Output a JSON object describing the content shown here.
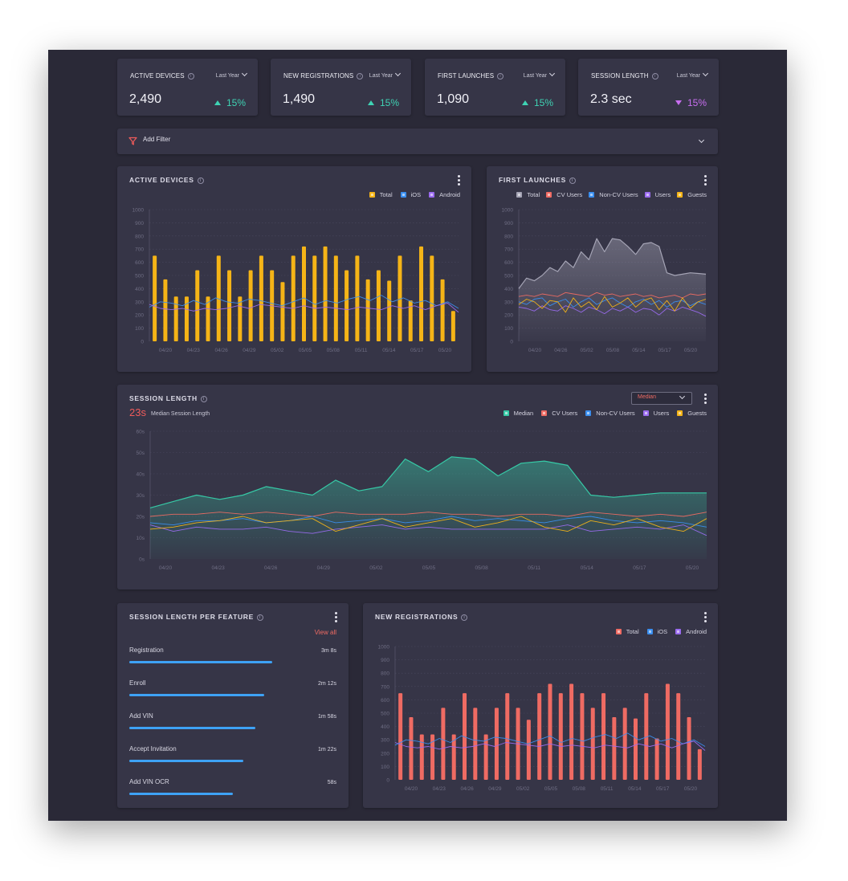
{
  "kpis": [
    {
      "title": "ACTIVE DEVICES",
      "period": "Last Year",
      "value": "2,490",
      "delta": "15%",
      "trend": "up"
    },
    {
      "title": "NEW  REGISTRATIONS",
      "period": "Last Year",
      "value": "1,490",
      "delta": "15%",
      "trend": "up"
    },
    {
      "title": "FIRST LAUNCHES",
      "period": "Last Year",
      "value": "1,090",
      "delta": "15%",
      "trend": "up"
    },
    {
      "title": "SESSION LENGTH",
      "period": "Last Year",
      "value": "2.3 sec",
      "delta": "15%",
      "trend": "down"
    }
  ],
  "filter": {
    "label": "Add Filter"
  },
  "colors": {
    "accent_yellow": "#f5b417",
    "accent_red": "#ef6b63",
    "ios_blue": "#3b8ff0",
    "android_purple": "#9b6cf0",
    "teal": "#36c9a6",
    "grey": "#a5a4b5",
    "kpi_up": "#3fd3b4",
    "kpi_down": "#c86ef0"
  },
  "active_devices": {
    "title": "ACTIVE DEVICES",
    "legend": [
      {
        "label": "Total",
        "color": "#f5b417"
      },
      {
        "label": "iOS",
        "color": "#3b8ff0"
      },
      {
        "label": "Android",
        "color": "#9b6cf0"
      }
    ]
  },
  "first_launches": {
    "title": "FIRST LAUNCHES",
    "legend": [
      {
        "label": "Total",
        "color": "#a5a4b5"
      },
      {
        "label": "CV Users",
        "color": "#ef6b63"
      },
      {
        "label": "Non-CV Users",
        "color": "#3b8ff0"
      },
      {
        "label": "Users",
        "color": "#9b6cf0"
      },
      {
        "label": "Guests",
        "color": "#f5b417"
      }
    ]
  },
  "session_length": {
    "title": "SESSION LENGTH",
    "big_value": "23s",
    "subtitle": "Median Session Length",
    "dropdown": "Median",
    "legend": [
      {
        "label": "Median",
        "color": "#36c9a6"
      },
      {
        "label": "CV Users",
        "color": "#ef6b63"
      },
      {
        "label": "Non-CV Users",
        "color": "#3b8ff0"
      },
      {
        "label": "Users",
        "color": "#9b6cf0"
      },
      {
        "label": "Guests",
        "color": "#f5b417"
      }
    ]
  },
  "features": {
    "title": "SESSION LENGTH PER FEATURE",
    "view_all": "View all",
    "items": [
      {
        "name": "Registration",
        "value": "3m 8s",
        "fraction": 0.69
      },
      {
        "name": "Enroll",
        "value": "2m 12s",
        "fraction": 0.65
      },
      {
        "name": "Add VIN",
        "value": "1m 58s",
        "fraction": 0.61
      },
      {
        "name": "Accept Invitation",
        "value": "1m 22s",
        "fraction": 0.55
      },
      {
        "name": "Add VIN OCR",
        "value": "58s",
        "fraction": 0.5
      }
    ]
  },
  "new_registrations": {
    "title": "NEW REGISTRATIONS",
    "legend": [
      {
        "label": "Total",
        "color": "#ef6b63"
      },
      {
        "label": "iOS",
        "color": "#3b8ff0"
      },
      {
        "label": "Android",
        "color": "#9b6cf0"
      }
    ]
  },
  "chart_data": [
    {
      "id": "active_devices",
      "type": "bar",
      "title": "ACTIVE DEVICES",
      "xticks": [
        "04/20",
        "04/23",
        "04/26",
        "04/29",
        "05/02",
        "05/05",
        "05/08",
        "05/11",
        "05/14",
        "05/17",
        "05/20"
      ],
      "yticks": [
        "0",
        "100",
        "200",
        "300",
        "400",
        "500",
        "600",
        "700",
        "800",
        "900",
        "1000"
      ],
      "ylim": [
        0,
        1000
      ],
      "series": [
        {
          "name": "Total",
          "kind": "bar",
          "color": "#f5b417",
          "values": [
            650,
            470,
            340,
            340,
            540,
            340,
            650,
            540,
            340,
            540,
            650,
            540,
            450,
            650,
            720,
            650,
            720,
            650,
            540,
            650,
            470,
            540,
            460,
            650,
            310,
            720,
            650,
            470,
            230
          ]
        },
        {
          "name": "iOS",
          "kind": "line",
          "color": "#3b8ff0",
          "values": [
            260,
            300,
            290,
            270,
            310,
            280,
            330,
            300,
            290,
            320,
            310,
            290,
            270,
            300,
            330,
            280,
            310,
            290,
            320,
            340,
            310,
            350,
            300,
            330,
            290,
            310,
            270,
            300,
            250
          ]
        },
        {
          "name": "Android",
          "kind": "line",
          "color": "#9b6cf0",
          "values": [
            280,
            250,
            240,
            250,
            230,
            250,
            240,
            250,
            270,
            250,
            280,
            270,
            260,
            250,
            270,
            250,
            260,
            250,
            240,
            260,
            250,
            240,
            270,
            250,
            270,
            240,
            270,
            290,
            220
          ]
        }
      ]
    },
    {
      "id": "first_launches",
      "type": "area",
      "title": "FIRST LAUNCHES",
      "xticks": [
        "04/20",
        "04/26",
        "05/02",
        "05/08",
        "05/14",
        "05/17",
        "05/20"
      ],
      "yticks": [
        "0",
        "100",
        "200",
        "300",
        "400",
        "500",
        "600",
        "700",
        "800",
        "900",
        "1000"
      ],
      "ylim": [
        0,
        1000
      ],
      "series": [
        {
          "name": "Total",
          "kind": "area",
          "color": "#a5a4b5",
          "values": [
            400,
            480,
            460,
            500,
            560,
            530,
            610,
            560,
            680,
            620,
            780,
            680,
            780,
            770,
            720,
            660,
            740,
            750,
            720,
            520,
            500,
            510,
            520,
            515,
            510
          ]
        },
        {
          "name": "CV Users",
          "kind": "line",
          "color": "#ef6b63",
          "values": [
            340,
            350,
            340,
            360,
            350,
            340,
            370,
            360,
            350,
            340,
            370,
            350,
            360,
            340,
            350,
            360,
            340,
            350,
            330,
            340,
            350,
            330,
            360,
            350,
            360
          ]
        },
        {
          "name": "Non-CV Users",
          "kind": "line",
          "color": "#3b8ff0",
          "values": [
            300,
            280,
            320,
            330,
            270,
            300,
            320,
            260,
            300,
            330,
            280,
            310,
            330,
            290,
            260,
            300,
            320,
            280,
            310,
            260,
            300,
            310,
            270,
            300,
            280
          ]
        },
        {
          "name": "Users",
          "kind": "line",
          "color": "#9b6cf0",
          "values": [
            260,
            250,
            230,
            270,
            240,
            230,
            270,
            250,
            220,
            260,
            240,
            210,
            250,
            230,
            260,
            220,
            250,
            240,
            200,
            250,
            230,
            260,
            240,
            220,
            190
          ]
        },
        {
          "name": "Guests",
          "kind": "line",
          "color": "#f5b417",
          "values": [
            280,
            320,
            300,
            250,
            310,
            300,
            220,
            330,
            260,
            300,
            240,
            340,
            260,
            290,
            330,
            260,
            310,
            330,
            240,
            310,
            230,
            330,
            250,
            300,
            320
          ]
        }
      ]
    },
    {
      "id": "session_length",
      "type": "area",
      "title": "SESSION LENGTH",
      "xticks": [
        "04/20",
        "04/23",
        "04/26",
        "04/29",
        "05/02",
        "05/05",
        "05/08",
        "05/11",
        "05/14",
        "05/17",
        "05/20"
      ],
      "yticks": [
        "0s",
        "10s",
        "20s",
        "30s",
        "40s",
        "50s",
        "60s"
      ],
      "ylim": [
        0,
        60
      ],
      "series": [
        {
          "name": "Median",
          "kind": "area",
          "color": "#36c9a6",
          "values": [
            24,
            27,
            30,
            28,
            30,
            34,
            32,
            30,
            37,
            32,
            34,
            47,
            41,
            48,
            47,
            39,
            45,
            46,
            44,
            30,
            29,
            30,
            31,
            31,
            31
          ]
        },
        {
          "name": "CV Users",
          "kind": "line",
          "color": "#ef6b63",
          "values": [
            20,
            21,
            21,
            22,
            21,
            22,
            21,
            20,
            22,
            21,
            21,
            21,
            22,
            21,
            21,
            20,
            21,
            21,
            20,
            22,
            21,
            20,
            21,
            20,
            22
          ]
        },
        {
          "name": "Non-CV Users",
          "kind": "line",
          "color": "#3b8ff0",
          "values": [
            17,
            16,
            18,
            18,
            19,
            17,
            18,
            20,
            17,
            18,
            19,
            17,
            18,
            20,
            18,
            19,
            18,
            17,
            19,
            20,
            18,
            17,
            18,
            17,
            15
          ]
        },
        {
          "name": "Users",
          "kind": "line",
          "color": "#9b6cf0",
          "values": [
            16,
            13,
            15,
            14,
            14,
            15,
            13,
            12,
            14,
            15,
            16,
            14,
            15,
            14,
            14,
            14,
            14,
            14,
            16,
            13,
            14,
            15,
            14,
            16,
            11
          ]
        },
        {
          "name": "Guests",
          "kind": "line",
          "color": "#f5b417",
          "values": [
            14,
            15,
            17,
            18,
            20,
            17,
            18,
            19,
            13,
            16,
            19,
            15,
            17,
            19,
            15,
            17,
            20,
            15,
            13,
            18,
            16,
            19,
            15,
            13,
            19
          ]
        }
      ]
    },
    {
      "id": "new_registrations",
      "type": "bar",
      "title": "NEW REGISTRATIONS",
      "xticks": [
        "04/20",
        "04/23",
        "04/26",
        "04/29",
        "05/02",
        "05/05",
        "05/08",
        "05/11",
        "05/14",
        "05/17",
        "05/20"
      ],
      "yticks": [
        "0",
        "100",
        "200",
        "300",
        "400",
        "500",
        "600",
        "700",
        "800",
        "900",
        "1000"
      ],
      "ylim": [
        0,
        1000
      ],
      "series": [
        {
          "name": "Total",
          "kind": "bar",
          "color": "#ef6b63",
          "values": [
            650,
            470,
            340,
            340,
            540,
            340,
            650,
            540,
            340,
            540,
            650,
            540,
            450,
            650,
            720,
            650,
            720,
            650,
            540,
            650,
            470,
            540,
            460,
            650,
            310,
            720,
            650,
            470,
            230
          ]
        },
        {
          "name": "iOS",
          "kind": "line",
          "color": "#3b8ff0",
          "values": [
            260,
            300,
            290,
            270,
            310,
            280,
            330,
            300,
            290,
            320,
            310,
            290,
            270,
            300,
            330,
            280,
            310,
            290,
            320,
            340,
            310,
            350,
            300,
            330,
            290,
            310,
            270,
            300,
            250
          ]
        },
        {
          "name": "Android",
          "kind": "line",
          "color": "#9b6cf0",
          "values": [
            280,
            250,
            240,
            250,
            230,
            250,
            240,
            250,
            270,
            250,
            280,
            270,
            260,
            250,
            270,
            250,
            260,
            250,
            240,
            260,
            250,
            240,
            270,
            250,
            270,
            240,
            270,
            290,
            220
          ]
        }
      ]
    }
  ]
}
